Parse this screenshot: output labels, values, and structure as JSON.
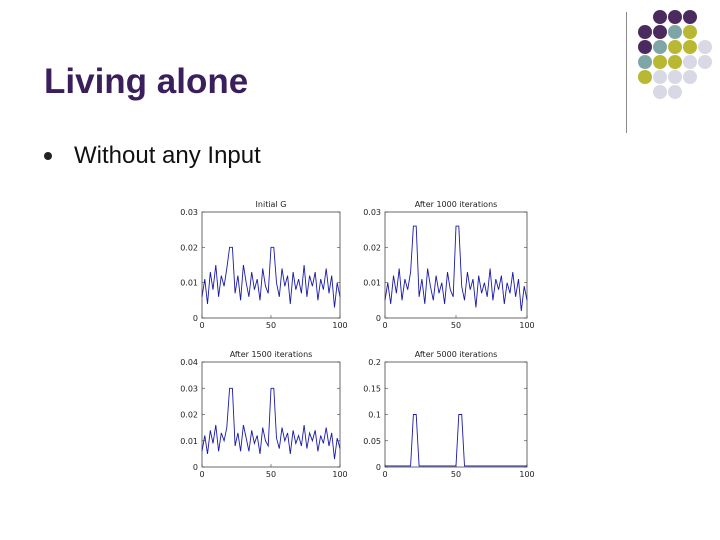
{
  "slide": {
    "title": "Living alone",
    "bullets": [
      {
        "text": "Without any Input"
      }
    ]
  },
  "decoration": {
    "colors": {
      "purple": "#4b2a5f",
      "teal": "#7fa6a6",
      "olive": "#b8b832",
      "lavender": "#d9d9e6"
    },
    "dot_grid": [
      [
        "",
        "purple",
        "purple",
        "purple",
        ""
      ],
      [
        "purple",
        "purple",
        "teal",
        "olive",
        ""
      ],
      [
        "purple",
        "teal",
        "olive",
        "olive",
        "lavender"
      ],
      [
        "teal",
        "olive",
        "olive",
        "lavender",
        "lavender"
      ],
      [
        "olive",
        "lavender",
        "lavender",
        "lavender",
        ""
      ],
      [
        "",
        "lavender",
        "lavender",
        "",
        ""
      ]
    ]
  },
  "chart_data": [
    {
      "type": "line",
      "title": "Initial G",
      "xlim": [
        0,
        100
      ],
      "ylim": [
        0,
        0.03
      ],
      "xticks": [
        "0",
        "50",
        "100"
      ],
      "yticks": [
        "0",
        "0.01",
        "0.02",
        "0.03"
      ],
      "series_color": "#1a1aa8",
      "x": [
        0,
        2,
        4,
        6,
        8,
        10,
        12,
        14,
        16,
        18,
        20,
        22,
        24,
        26,
        28,
        30,
        32,
        34,
        36,
        38,
        40,
        42,
        44,
        46,
        48,
        50,
        52,
        54,
        56,
        58,
        60,
        62,
        64,
        66,
        68,
        70,
        72,
        74,
        76,
        78,
        80,
        82,
        84,
        86,
        88,
        90,
        92,
        94,
        96,
        98,
        100
      ],
      "values": [
        0.006,
        0.011,
        0.004,
        0.013,
        0.008,
        0.015,
        0.006,
        0.012,
        0.009,
        0.014,
        0.02,
        0.02,
        0.007,
        0.012,
        0.005,
        0.015,
        0.01,
        0.006,
        0.013,
        0.008,
        0.011,
        0.005,
        0.014,
        0.009,
        0.007,
        0.02,
        0.02,
        0.01,
        0.006,
        0.014,
        0.009,
        0.012,
        0.004,
        0.013,
        0.008,
        0.011,
        0.007,
        0.015,
        0.006,
        0.012,
        0.009,
        0.013,
        0.005,
        0.011,
        0.008,
        0.014,
        0.007,
        0.012,
        0.003,
        0.01,
        0.006
      ]
    },
    {
      "type": "line",
      "title": "After 1000 iterations",
      "xlim": [
        0,
        100
      ],
      "ylim": [
        0,
        0.03
      ],
      "xticks": [
        "0",
        "50",
        "100"
      ],
      "yticks": [
        "0",
        "0.01",
        "0.02",
        "0.03"
      ],
      "series_color": "#1a1aa8",
      "x": [
        0,
        2,
        4,
        6,
        8,
        10,
        12,
        14,
        16,
        18,
        20,
        22,
        24,
        26,
        28,
        30,
        32,
        34,
        36,
        38,
        40,
        42,
        44,
        46,
        48,
        50,
        52,
        54,
        56,
        58,
        60,
        62,
        64,
        66,
        68,
        70,
        72,
        74,
        76,
        78,
        80,
        82,
        84,
        86,
        88,
        90,
        92,
        94,
        96,
        98,
        100
      ],
      "values": [
        0.005,
        0.01,
        0.004,
        0.012,
        0.007,
        0.014,
        0.005,
        0.011,
        0.008,
        0.013,
        0.026,
        0.026,
        0.006,
        0.011,
        0.004,
        0.014,
        0.009,
        0.005,
        0.012,
        0.007,
        0.01,
        0.004,
        0.013,
        0.008,
        0.006,
        0.026,
        0.026,
        0.009,
        0.005,
        0.013,
        0.008,
        0.011,
        0.003,
        0.012,
        0.007,
        0.01,
        0.006,
        0.014,
        0.005,
        0.011,
        0.008,
        0.012,
        0.004,
        0.01,
        0.007,
        0.013,
        0.006,
        0.011,
        0.002,
        0.009,
        0.005
      ]
    },
    {
      "type": "line",
      "title": "After 1500 iterations",
      "xlim": [
        0,
        100
      ],
      "ylim": [
        0,
        0.04
      ],
      "xticks": [
        "0",
        "50",
        "100"
      ],
      "yticks": [
        "0",
        "0.01",
        "0.02",
        "0.03",
        "0.04"
      ],
      "series_color": "#1a1aa8",
      "x": [
        0,
        2,
        4,
        6,
        8,
        10,
        12,
        14,
        16,
        18,
        20,
        22,
        24,
        26,
        28,
        30,
        32,
        34,
        36,
        38,
        40,
        42,
        44,
        46,
        48,
        50,
        52,
        54,
        56,
        58,
        60,
        62,
        64,
        66,
        68,
        70,
        72,
        74,
        76,
        78,
        80,
        82,
        84,
        86,
        88,
        90,
        92,
        94,
        96,
        98,
        100
      ],
      "values": [
        0.006,
        0.012,
        0.005,
        0.014,
        0.009,
        0.016,
        0.006,
        0.013,
        0.01,
        0.015,
        0.03,
        0.03,
        0.008,
        0.013,
        0.006,
        0.016,
        0.011,
        0.006,
        0.014,
        0.009,
        0.012,
        0.005,
        0.015,
        0.01,
        0.008,
        0.03,
        0.03,
        0.011,
        0.007,
        0.015,
        0.01,
        0.013,
        0.005,
        0.014,
        0.009,
        0.012,
        0.008,
        0.016,
        0.007,
        0.013,
        0.01,
        0.014,
        0.006,
        0.012,
        0.009,
        0.015,
        0.008,
        0.013,
        0.003,
        0.011,
        0.007
      ]
    },
    {
      "type": "line",
      "title": "After 5000 iterations",
      "xlim": [
        0,
        100
      ],
      "ylim": [
        0,
        0.2
      ],
      "xticks": [
        "0",
        "50",
        "100"
      ],
      "yticks": [
        "0",
        "0.05",
        "0.1",
        "0.15",
        "0.2"
      ],
      "series_color": "#1a1aa8",
      "x": [
        0,
        5,
        10,
        15,
        18,
        20,
        22,
        24,
        26,
        30,
        35,
        40,
        45,
        50,
        52,
        54,
        56,
        60,
        65,
        70,
        75,
        80,
        85,
        90,
        95,
        100
      ],
      "values": [
        0.002,
        0.002,
        0.002,
        0.002,
        0.002,
        0.1,
        0.1,
        0.002,
        0.002,
        0.002,
        0.002,
        0.002,
        0.002,
        0.002,
        0.1,
        0.1,
        0.002,
        0.002,
        0.002,
        0.002,
        0.002,
        0.002,
        0.002,
        0.002,
        0.002,
        0.002
      ]
    }
  ]
}
